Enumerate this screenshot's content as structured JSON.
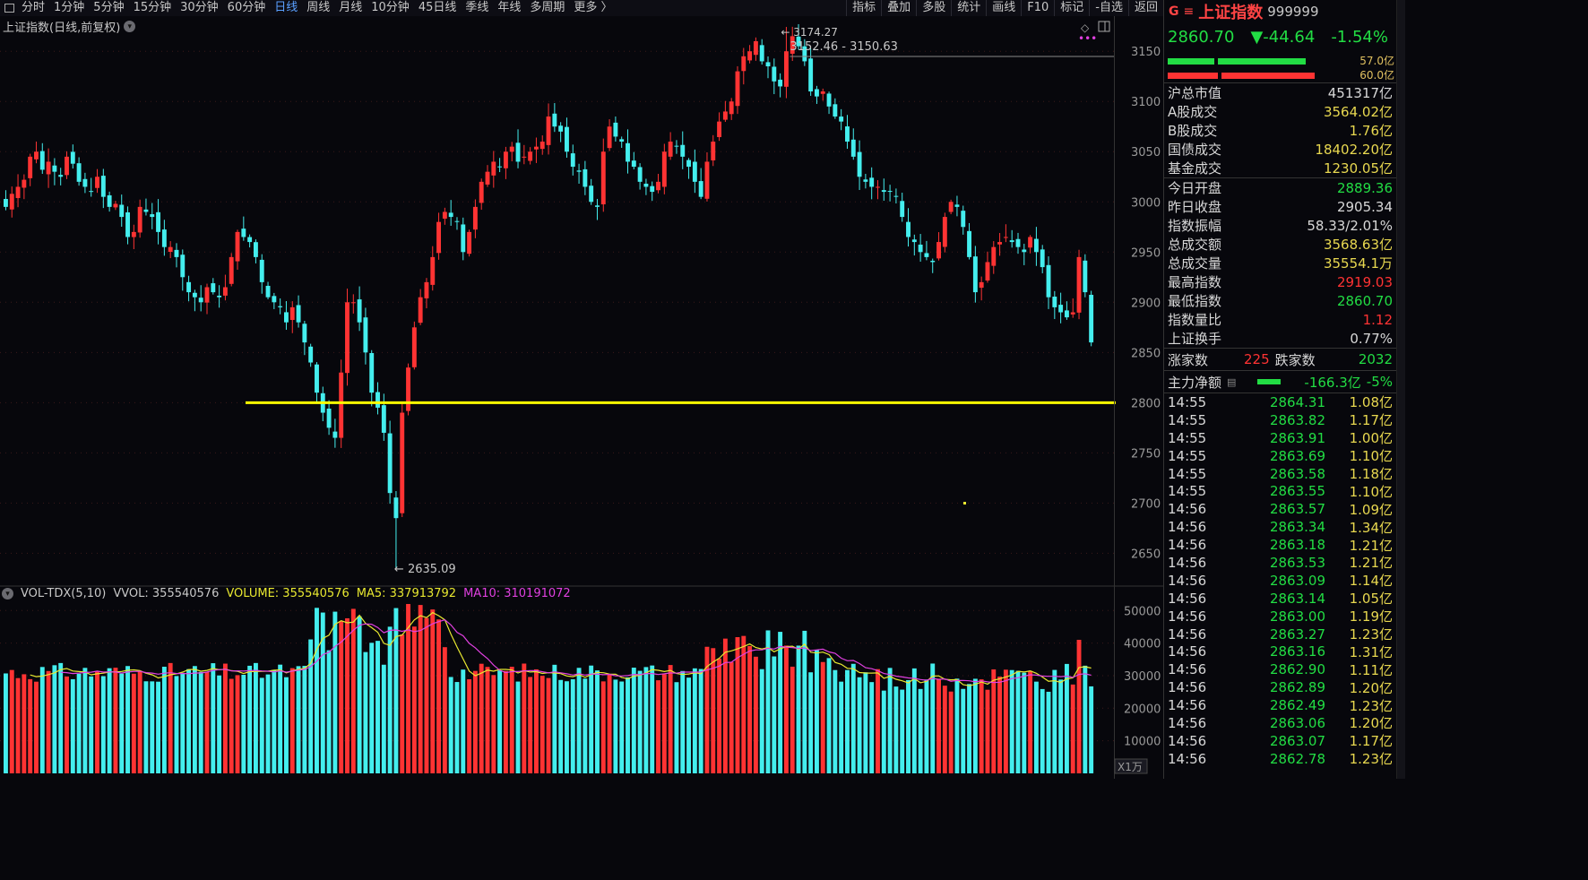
{
  "toolbar": {
    "periods": [
      "分时",
      "1分钟",
      "5分钟",
      "15分钟",
      "30分钟",
      "60分钟",
      "日线",
      "周线",
      "月线",
      "10分钟",
      "45日线",
      "季线",
      "年线",
      "多周期",
      "更多 〉"
    ],
    "active_period": "日线",
    "tools": [
      "指标",
      "叠加",
      "多股",
      "统计",
      "画线",
      "F10",
      "标记",
      "-自选",
      "返回"
    ]
  },
  "chart": {
    "title": "上证指数(日线,前复权)",
    "peak_label": "3174.27",
    "range_label": "3152.46 - 3150.63",
    "low_label": "2635.09",
    "support_line": 2800,
    "colors": {
      "up": "#ff3333",
      "down": "#44eeee",
      "ma5": "#e8e830",
      "ma10": "#e040e0",
      "support": "#ffff00",
      "grid": "#3a1a1a"
    }
  },
  "chart_data": {
    "type": "candlestick",
    "y_axis_ticks": [
      "3150",
      "3100",
      "3050",
      "3000",
      "2950",
      "2900",
      "2850",
      "2800",
      "2750",
      "2700",
      "2650"
    ],
    "ylim": [
      2620,
      3185
    ],
    "closes": [
      2995,
      3008,
      3015,
      3022,
      3045,
      3050,
      3032,
      3040,
      3030,
      3025,
      3045,
      3038,
      3020,
      3015,
      3010,
      3025,
      3005,
      2995,
      2998,
      2985,
      2965,
      2970,
      2995,
      2990,
      2985,
      2970,
      2955,
      2955,
      2945,
      2925,
      2910,
      2905,
      2900,
      2915,
      2910,
      2905,
      2915,
      2945,
      2970,
      2965,
      2960,
      2945,
      2920,
      2905,
      2900,
      2895,
      2880,
      2895,
      2880,
      2860,
      2840,
      2810,
      2790,
      2775,
      2765,
      2830,
      2900,
      2900,
      2880,
      2850,
      2810,
      2795,
      2770,
      2710,
      2685,
      2790,
      2835,
      2875,
      2905,
      2920,
      2945,
      2980,
      2990,
      2985,
      2980,
      2950,
      2970,
      2995,
      3020,
      3030,
      3040,
      3035,
      3050,
      3055,
      3040,
      3045,
      3050,
      3055,
      3060,
      3085,
      3075,
      3070,
      3050,
      3035,
      3030,
      3015,
      3000,
      2995,
      3050,
      3075,
      3065,
      3060,
      3040,
      3035,
      3020,
      3015,
      3010,
      3020,
      3050,
      3060,
      3055,
      3045,
      3035,
      3020,
      3005,
      3040,
      3060,
      3080,
      3090,
      3100,
      3130,
      3145,
      3150,
      3160,
      3140,
      3135,
      3120,
      3115,
      3150,
      3165,
      3155,
      3140,
      3110,
      3105,
      3110,
      3095,
      3085,
      3080,
      3060,
      3045,
      3025,
      3020,
      3015,
      3015,
      3010,
      3010,
      3005,
      2985,
      2965,
      2960,
      2950,
      2945,
      2940,
      2960,
      2985,
      3000,
      2995,
      2975,
      2945,
      2910,
      2920,
      2940,
      2955,
      2960,
      2965,
      2960,
      2955,
      2950,
      2965,
      2950,
      2935,
      2905,
      2895,
      2890,
      2885,
      2890,
      2945,
      2910,
      2860
    ],
    "low_value": 2635.09,
    "high_value": 3174.27,
    "volume": {
      "indicator": "VOL-TDX(5,10)",
      "vvol": "VVOL: 355540576",
      "volume": "VOLUME: 355540576",
      "ma5": "MA5: 337913792",
      "ma10": "MA10: 310191072",
      "y_ticks": [
        "50000",
        "40000",
        "30000",
        "20000",
        "10000"
      ],
      "unit": "X1万",
      "ylim": [
        0,
        52000
      ]
    }
  },
  "panel": {
    "tag": "G",
    "name": "上证指数",
    "code": "999999",
    "price": "2860.70",
    "change": "▼-44.64",
    "change_pct": "-1.54%",
    "bar1_value": "57.0亿",
    "bar2_value": "60.0亿",
    "market_cap_label": "沪总市值",
    "market_cap": "451317亿",
    "turnover": [
      {
        "label": "A股成交",
        "value": "3564.02亿"
      },
      {
        "label": "B股成交",
        "value": "1.76亿"
      },
      {
        "label": "国债成交",
        "value": "18402.20亿"
      },
      {
        "label": "基金成交",
        "value": "1230.05亿"
      }
    ],
    "stats": [
      {
        "label": "今日开盘",
        "value": "2889.36",
        "color": "green"
      },
      {
        "label": "昨日收盘",
        "value": "2905.34",
        "color": "white"
      },
      {
        "label": "指数振幅",
        "value": "58.33/2.01%",
        "color": "white"
      },
      {
        "label": "总成交额",
        "value": "3568.63亿",
        "color": "yellow"
      },
      {
        "label": "总成交量",
        "value": "35554.1万",
        "color": "yellow"
      },
      {
        "label": "最高指数",
        "value": "2919.03",
        "color": "red"
      },
      {
        "label": "最低指数",
        "value": "2860.70",
        "color": "green"
      },
      {
        "label": "指数量比",
        "value": "1.12",
        "color": "red"
      },
      {
        "label": "上证换手",
        "value": "0.77%",
        "color": "white"
      }
    ],
    "up_label": "涨家数",
    "up_count": "225",
    "down_label": "跌家数",
    "down_count": "2032",
    "netflow_label": "主力净额",
    "netflow_value": "-166.3亿",
    "netflow_pct": "-5%",
    "ticks": [
      {
        "time": "14:55",
        "price": "2864.31",
        "amount": "1.08亿"
      },
      {
        "time": "14:55",
        "price": "2863.82",
        "amount": "1.17亿"
      },
      {
        "time": "14:55",
        "price": "2863.91",
        "amount": "1.00亿"
      },
      {
        "time": "14:55",
        "price": "2863.69",
        "amount": "1.10亿"
      },
      {
        "time": "14:55",
        "price": "2863.58",
        "amount": "1.18亿"
      },
      {
        "time": "14:55",
        "price": "2863.55",
        "amount": "1.10亿"
      },
      {
        "time": "14:56",
        "price": "2863.57",
        "amount": "1.09亿"
      },
      {
        "time": "14:56",
        "price": "2863.34",
        "amount": "1.34亿"
      },
      {
        "time": "14:56",
        "price": "2863.18",
        "amount": "1.21亿"
      },
      {
        "time": "14:56",
        "price": "2863.53",
        "amount": "1.21亿"
      },
      {
        "time": "14:56",
        "price": "2863.09",
        "amount": "1.14亿"
      },
      {
        "time": "14:56",
        "price": "2863.14",
        "amount": "1.05亿"
      },
      {
        "time": "14:56",
        "price": "2863.00",
        "amount": "1.19亿"
      },
      {
        "time": "14:56",
        "price": "2863.27",
        "amount": "1.23亿"
      },
      {
        "time": "14:56",
        "price": "2863.16",
        "amount": "1.31亿"
      },
      {
        "time": "14:56",
        "price": "2862.90",
        "amount": "1.11亿"
      },
      {
        "time": "14:56",
        "price": "2862.89",
        "amount": "1.20亿"
      },
      {
        "time": "14:56",
        "price": "2862.49",
        "amount": "1.23亿"
      },
      {
        "time": "14:56",
        "price": "2863.06",
        "amount": "1.20亿"
      },
      {
        "time": "14:56",
        "price": "2863.07",
        "amount": "1.17亿"
      },
      {
        "time": "14:56",
        "price": "2862.78",
        "amount": "1.23亿"
      }
    ]
  }
}
